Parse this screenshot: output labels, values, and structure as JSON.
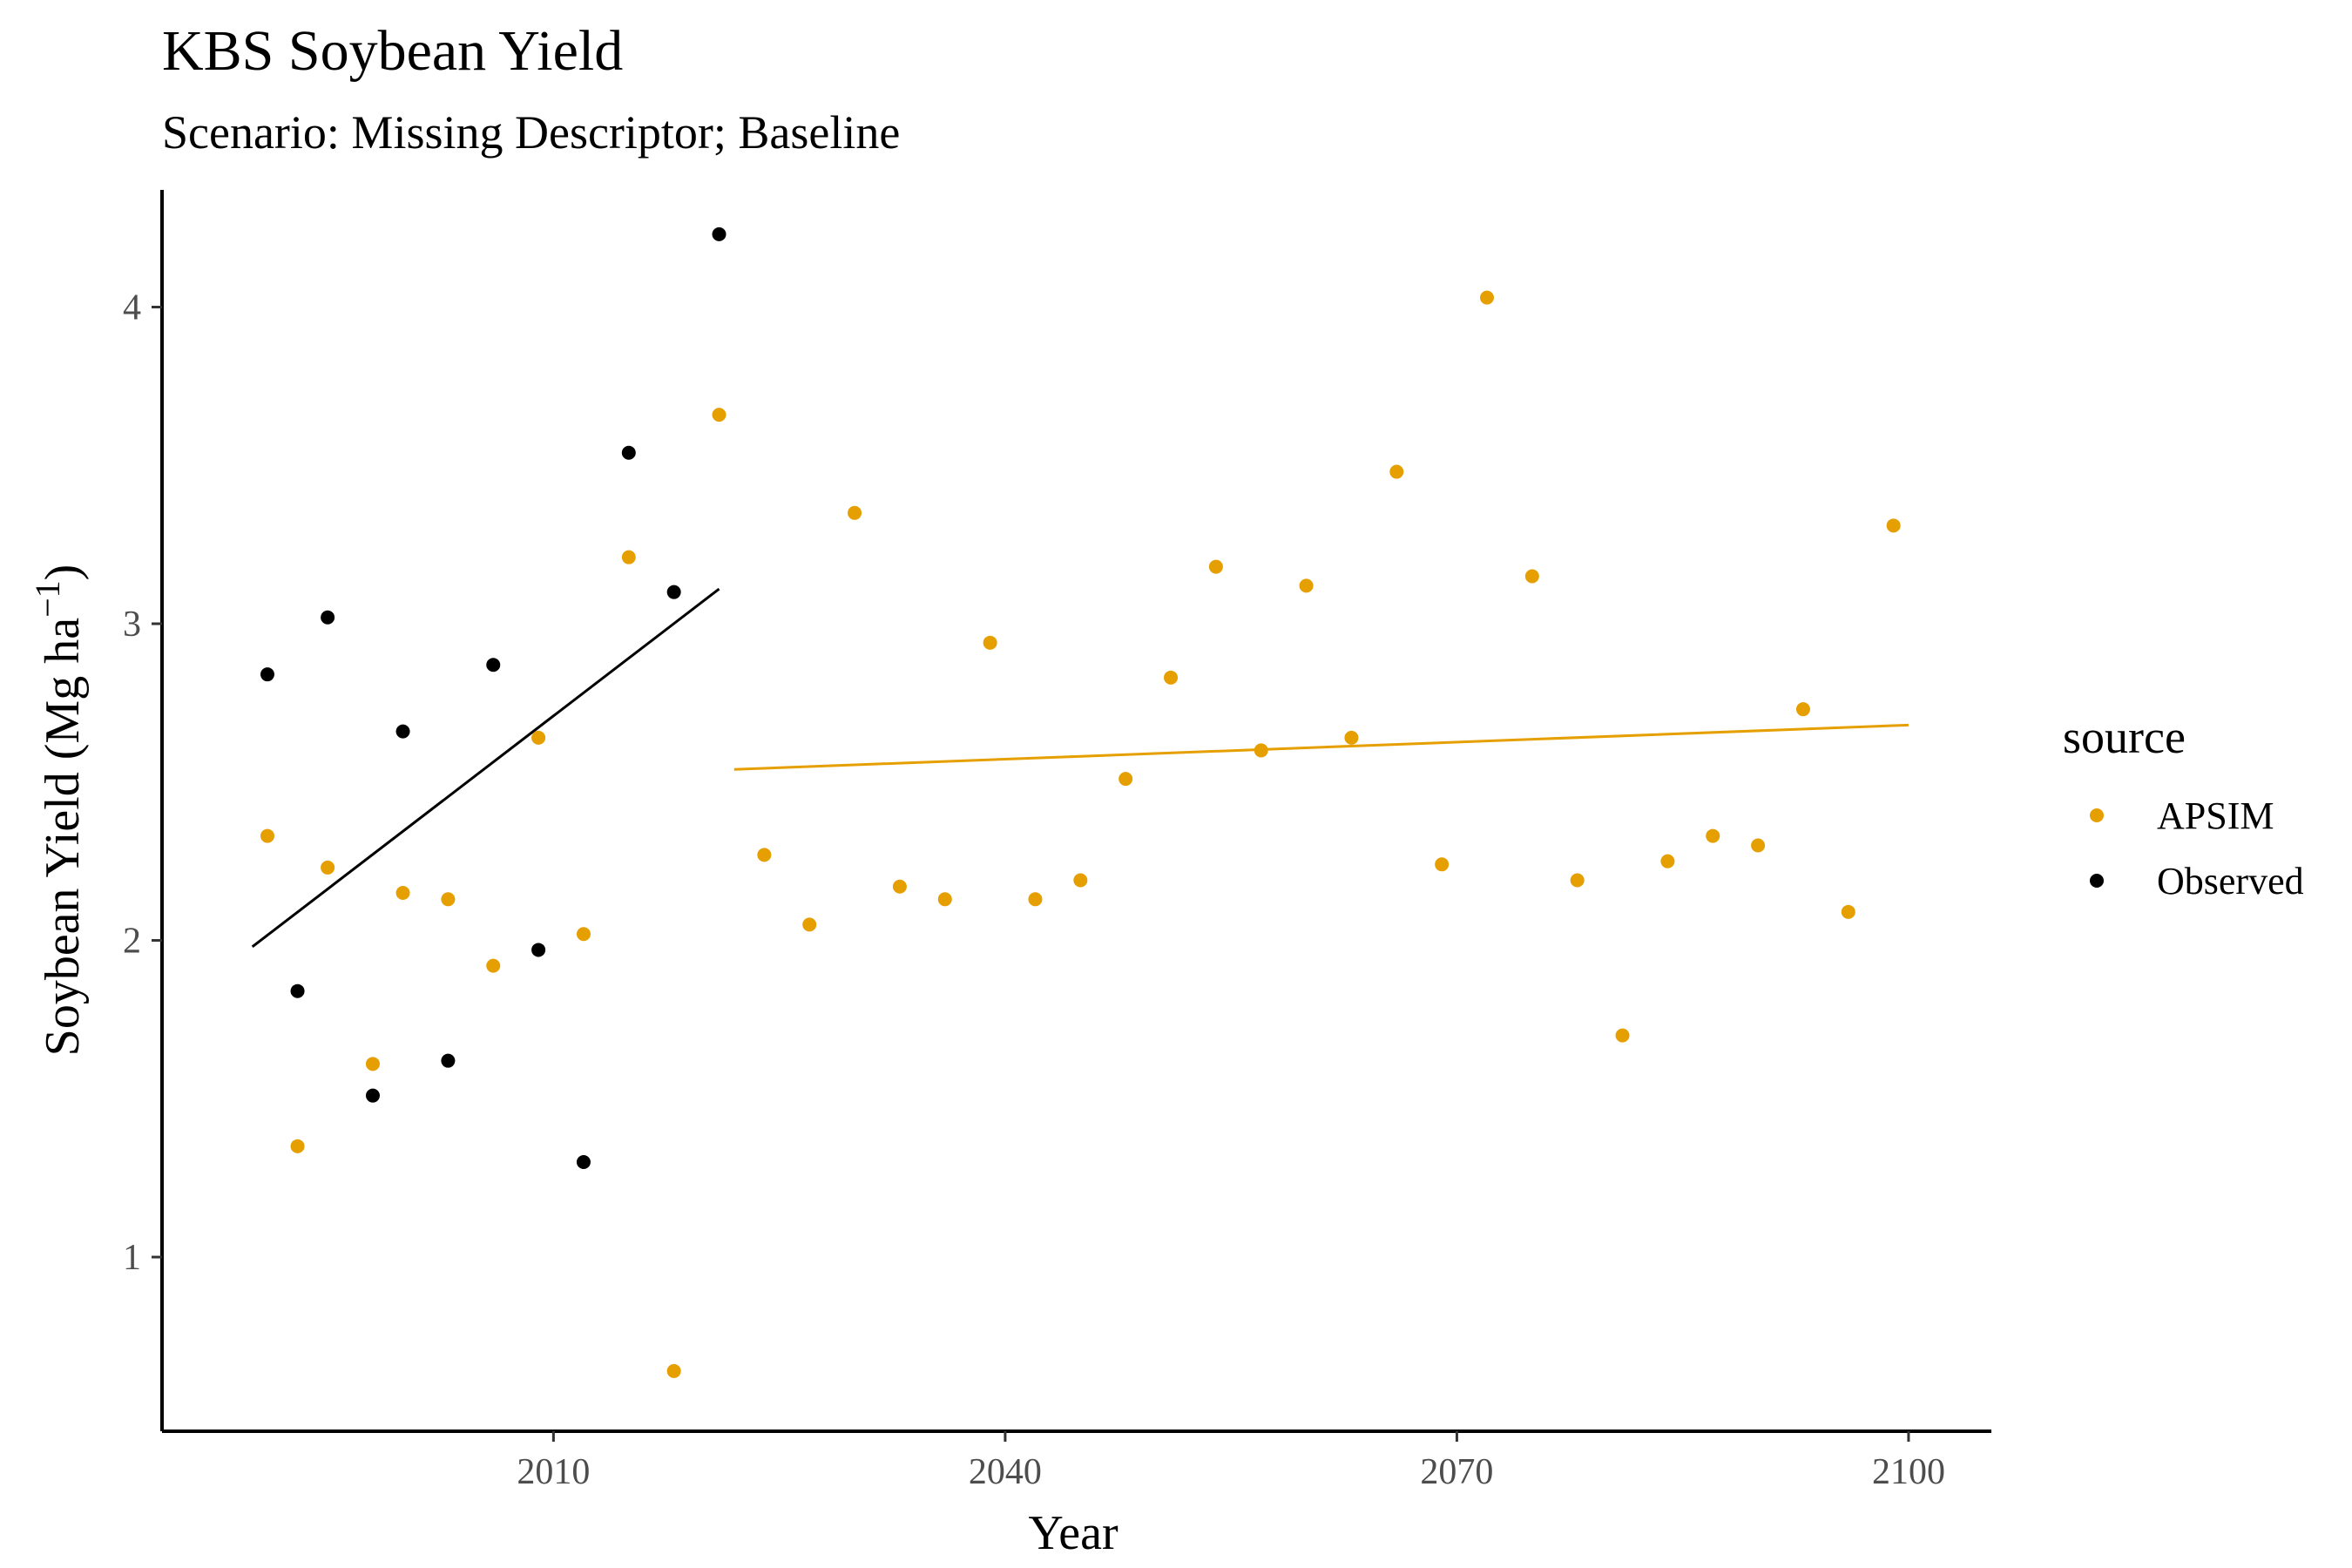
{
  "chart_data": {
    "type": "scatter",
    "title": "KBS Soybean Yield",
    "subtitle": "Scenario: Missing Descriptor; Baseline",
    "xlabel": "Year",
    "ylabel_main": "Soybean Yield (Mg ha",
    "ylabel_sup": "−1",
    "ylabel_close": ")",
    "xlim": [
      1984,
      2105.5
    ],
    "ylim": [
      0.45,
      4.37
    ],
    "x_ticks": [
      2010,
      2040,
      2070,
      2100
    ],
    "y_ticks": [
      1,
      2,
      3,
      4
    ],
    "grid": false,
    "legend": {
      "title": "source",
      "placement": "right"
    },
    "series": [
      {
        "name": "APSIM",
        "color": "#E69F00",
        "points": [
          [
            1991,
            2.33
          ],
          [
            1993,
            1.35
          ],
          [
            1995,
            2.23
          ],
          [
            1998,
            1.61
          ],
          [
            2000,
            2.15
          ],
          [
            2003,
            2.13
          ],
          [
            2006,
            1.92
          ],
          [
            2009,
            2.64
          ],
          [
            2012,
            2.02
          ],
          [
            2015,
            3.21
          ],
          [
            2018,
            0.64
          ],
          [
            2021,
            3.66
          ],
          [
            2024,
            2.27
          ],
          [
            2027,
            2.05
          ],
          [
            2030,
            3.35
          ],
          [
            2033,
            2.17
          ],
          [
            2036,
            2.13
          ],
          [
            2039,
            2.94
          ],
          [
            2042,
            2.13
          ],
          [
            2045,
            2.19
          ],
          [
            2048,
            2.51
          ],
          [
            2051,
            2.83
          ],
          [
            2054,
            3.18
          ],
          [
            2057,
            2.6
          ],
          [
            2060,
            3.12
          ],
          [
            2063,
            2.64
          ],
          [
            2066,
            3.48
          ],
          [
            2069,
            2.24
          ],
          [
            2072,
            4.03
          ],
          [
            2075,
            3.15
          ],
          [
            2078,
            2.19
          ],
          [
            2081,
            1.7
          ],
          [
            2084,
            2.25
          ],
          [
            2087,
            2.33
          ],
          [
            2090,
            2.3
          ],
          [
            2093,
            2.73
          ],
          [
            2096,
            2.09
          ],
          [
            2099,
            3.31
          ]
        ],
        "trend": [
          [
            2022,
            2.54
          ],
          [
            2100,
            2.68
          ]
        ]
      },
      {
        "name": "Observed",
        "color": "#000000",
        "points": [
          [
            1991,
            2.84
          ],
          [
            1993,
            1.84
          ],
          [
            1995,
            3.02
          ],
          [
            1998,
            1.51
          ],
          [
            2000,
            2.66
          ],
          [
            2003,
            1.62
          ],
          [
            2006,
            2.87
          ],
          [
            2009,
            1.97
          ],
          [
            2012,
            1.3
          ],
          [
            2015,
            3.54
          ],
          [
            2018,
            3.1
          ],
          [
            2021,
            4.23
          ]
        ],
        "trend": [
          [
            1990,
            1.98
          ],
          [
            2021,
            3.11
          ]
        ]
      }
    ]
  }
}
